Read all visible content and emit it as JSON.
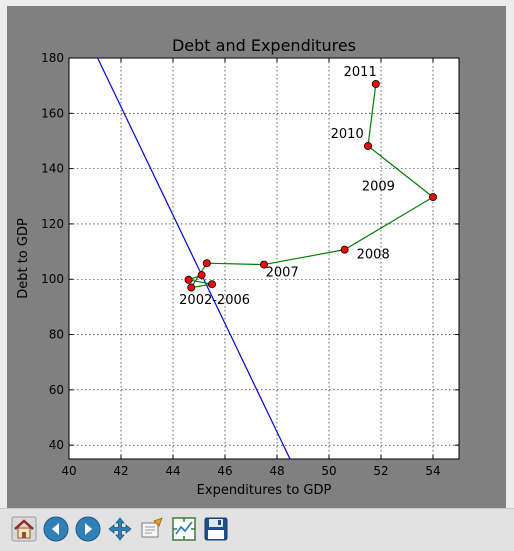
{
  "chart_data": {
    "type": "line",
    "title": "Debt and Expenditures",
    "xlabel": "Expenditures to GDP",
    "ylabel": "Debt to GDP",
    "xlim": [
      40,
      55
    ],
    "ylim": [
      35,
      180
    ],
    "x_ticks": [
      40,
      42,
      44,
      46,
      48,
      50,
      52,
      54
    ],
    "y_ticks": [
      40,
      60,
      80,
      100,
      120,
      140,
      160,
      180
    ],
    "grid": true,
    "series": [
      {
        "color": "#0000ff",
        "points": [
          [
            41.1,
            180
          ],
          [
            48.5,
            35
          ]
        ]
      },
      {
        "color": "#008000",
        "marker_color": "#ff0000",
        "points": [
          [
            45.1,
            101.5
          ],
          [
            44.6,
            99.8
          ],
          [
            45.5,
            98.2
          ],
          [
            44.7,
            97.0
          ],
          [
            45.3,
            105.8
          ],
          [
            47.5,
            105.3
          ],
          [
            50.6,
            110.7
          ],
          [
            54.0,
            129.7
          ],
          [
            51.5,
            148.2
          ],
          [
            51.8,
            170.6
          ]
        ]
      }
    ],
    "annotations": [
      {
        "text": "2002-2006",
        "x": 45.6,
        "y": 91
      },
      {
        "text": "2007",
        "x": 48.2,
        "y": 101
      },
      {
        "text": "2008",
        "x": 51.7,
        "y": 107.5
      },
      {
        "text": "2009",
        "x": 51.9,
        "y": 132
      },
      {
        "text": "2010",
        "x": 50.7,
        "y": 151
      },
      {
        "text": "2011",
        "x": 51.2,
        "y": 173.5
      }
    ]
  },
  "toolbar": {
    "buttons": [
      {
        "name": "home",
        "icon": "home-icon"
      },
      {
        "name": "back",
        "icon": "back-arrow-icon"
      },
      {
        "name": "forward",
        "icon": "forward-arrow-icon"
      },
      {
        "name": "pan",
        "icon": "move-icon"
      },
      {
        "name": "zoom",
        "icon": "zoom-rect-icon"
      },
      {
        "name": "configure",
        "icon": "subplots-icon"
      },
      {
        "name": "save",
        "icon": "floppy-disk-icon"
      }
    ]
  }
}
